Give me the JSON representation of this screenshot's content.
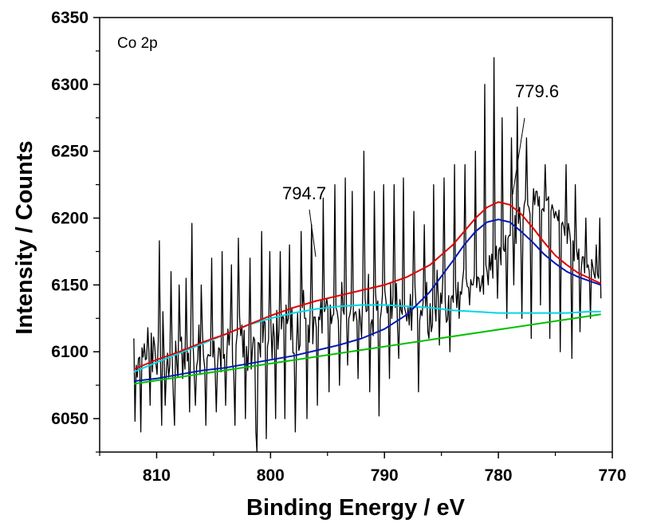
{
  "chart_data": {
    "type": "line",
    "title": "",
    "panel_label": "Co 2p",
    "xlabel": "Binding Energy / eV",
    "ylabel": "Intensity / Counts",
    "xlim": [
      815,
      770
    ],
    "ylim": [
      6025,
      6350
    ],
    "x_reversed": true,
    "grid": false,
    "legend": "none",
    "x_ticks": [
      810,
      800,
      790,
      780,
      770
    ],
    "y_ticks": [
      6050,
      6100,
      6150,
      6200,
      6250,
      6300,
      6350
    ],
    "series": [
      {
        "role": "raw",
        "color": "#000000",
        "x_start": 812,
        "x_end": 771,
        "x_step": 0.1,
        "values": [
          6070,
          6100,
          6090,
          6081,
          6103,
          6096,
          6089,
          6103,
          6096,
          6106,
          6094,
          6095,
          6118,
          6099,
          6098,
          6114,
          6085,
          6111,
          6104,
          6091,
          6083,
          6108,
          6087,
          6090,
          6093,
          6101,
          6096,
          6084,
          6086,
          6099,
          6081,
          6090,
          6074,
          6096,
          6067,
          6085,
          6108,
          6091,
          6081,
          6107,
          6108,
          6111,
          6080,
          6102,
          6087,
          6109,
          6093,
          6099,
          6095,
          6116,
          6082,
          6106,
          6083,
          6129,
          6089,
          6094,
          6120,
          6083,
          6111,
          6117,
          6096,
          6088,
          6102,
          6095,
          6098,
          6097,
          6097,
          6104,
          6096,
          6108,
          6085,
          6108,
          6090,
          6103,
          6102,
          6085,
          6089,
          6095,
          6098,
          6098,
          6098,
          6117,
          6105,
          6118,
          6114,
          6091,
          6085,
          6118,
          6105,
          6114,
          6118,
          6126,
          6112,
          6120,
          6096,
          6116,
          6124,
          6104,
          6086,
          6105,
          6127,
          6087,
          6101,
          6111,
          6109,
          6118,
          6106,
          6107,
          6106,
          6096,
          6121,
          6107,
          6123,
          6122,
          6110,
          6104,
          6109,
          6093,
          6120,
          6095,
          6121,
          6111,
          6110,
          6131,
          6102,
          6116,
          6104,
          6117,
          6127,
          6125,
          6112,
          6135,
          6121,
          6125,
          6112,
          6109,
          6133,
          6099,
          6099,
          6106,
          6103,
          6129,
          6101,
          6105,
          6124,
          6133,
          6146,
          6125,
          6125,
          6098,
          6120,
          6107,
          6138,
          6112,
          6106,
          6126,
          6126,
          6118,
          6132,
          6126,
          6124,
          6138,
          6114,
          6120,
          6130,
          6133,
          6140,
          6133,
          6127,
          6135,
          6121,
          6127,
          6128,
          6137,
          6133,
          6130,
          6123,
          6150,
          6117,
          6152,
          6131,
          6128,
          6117,
          6127,
          6132,
          6125,
          6128,
          6134,
          6127,
          6123,
          6129,
          6130,
          6123,
          6130,
          6132,
          6125,
          6111,
          6144,
          6138,
          6140,
          6130,
          6131,
          6158,
          6144,
          6121,
          6124,
          6112,
          6146,
          6145,
          6131,
          6138,
          6131,
          6124,
          6131,
          6143,
          6128,
          6146,
          6138,
          6129,
          6135,
          6133,
          6151,
          6125,
          6141,
          6147,
          6133,
          6151,
          6117,
          6136,
          6139,
          6131,
          6128,
          6118,
          6133,
          6129,
          6123,
          6133,
          6155,
          6143,
          6116,
          6142,
          6145,
          6149,
          6133,
          6134,
          6131,
          6123,
          6131,
          6127,
          6137,
          6137,
          6134,
          6152,
          6115,
          6129,
          6136,
          6115,
          6120,
          6144,
          6136,
          6123,
          6161,
          6141,
          6132,
          6144,
          6136,
          6156,
          6151,
          6138,
          6122,
          6124,
          6142,
          6144,
          6140,
          6142,
          6137,
          6153,
          6148,
          6133,
          6152,
          6153,
          6145,
          6143,
          6154,
          6162,
          6136,
          6155,
          6149,
          6148,
          6142,
          6154,
          6150,
          6150,
          6157,
          6148,
          6148,
          6156,
          6155,
          6162,
          6150,
          6157,
          6143,
          6164,
          6165,
          6160,
          6167,
          6172,
          6161,
          6173,
          6155,
          6176,
          6169,
          6179,
          6180,
          6176,
          6178,
          6165,
          6188,
          6177,
          6175,
          6187,
          6182,
          6185,
          6187,
          6187,
          6188,
          6198,
          6186,
          6202,
          6181,
          6206,
          6196,
          6208,
          6188,
          6209,
          6199,
          6210,
          6214,
          6209,
          6210,
          6208,
          6203,
          6214,
          6200,
          6222,
          6210,
          6205,
          6220,
          6209,
          6216,
          6212,
          6206,
          6207,
          6205,
          6215,
          6213,
          6214,
          6216,
          6211,
          6205,
          6210,
          6206,
          6201,
          6205,
          6202,
          6198,
          6206,
          6200,
          6195,
          6197,
          6193,
          6187,
          6192,
          6181,
          6196,
          6190,
          6181,
          6176,
          6183,
          6168,
          6187,
          6177,
          6169,
          6177,
          6174,
          6161,
          6171,
          6171,
          6159,
          6166,
          6163,
          6165,
          6160,
          6160,
          6169,
          6164,
          6158,
          6155,
          6151,
          6158,
          6155,
          6153,
          6155
        ],
        "spikes": [
          [
            812,
            6110
          ],
          [
            811.9,
            6048
          ],
          [
            811.6,
            6095
          ],
          [
            811.4,
            6040
          ],
          [
            810.6,
            6060
          ],
          [
            809.8,
            6183
          ],
          [
            809.6,
            6045
          ],
          [
            809.4,
            6130
          ],
          [
            809.2,
            6060
          ],
          [
            808.7,
            6160
          ],
          [
            808.4,
            6045
          ],
          [
            808,
            6150
          ],
          [
            807.4,
            6155
          ],
          [
            807.1,
            6055
          ],
          [
            806.9,
            6196
          ],
          [
            806.6,
            6060
          ],
          [
            806.1,
            6150
          ],
          [
            805.7,
            6045
          ],
          [
            805.2,
            6170
          ],
          [
            804.8,
            6055
          ],
          [
            804.2,
            6175
          ],
          [
            803.9,
            6060
          ],
          [
            803.4,
            6165
          ],
          [
            803.1,
            6045
          ],
          [
            802.8,
            6185
          ],
          [
            802.2,
            6050
          ],
          [
            801.8,
            6170
          ],
          [
            801.3,
            6040
          ],
          [
            801.2,
            6025
          ],
          [
            800.8,
            6190
          ],
          [
            800.4,
            6035
          ],
          [
            800.1,
            6175
          ],
          [
            799.6,
            6050
          ],
          [
            799.2,
            6175
          ],
          [
            798.7,
            6050
          ],
          [
            798.3,
            6180
          ],
          [
            797.8,
            6040
          ],
          [
            797.3,
            6190
          ],
          [
            796.8,
            6050
          ],
          [
            796.4,
            6195
          ],
          [
            795.9,
            6060
          ],
          [
            795.4,
            6215
          ],
          [
            794.9,
            6070
          ],
          [
            794.4,
            6225
          ],
          [
            793.9,
            6075
          ],
          [
            793.4,
            6230
          ],
          [
            793.2,
            6090
          ],
          [
            792.8,
            6220
          ],
          [
            792.3,
            6080
          ],
          [
            791.8,
            6250
          ],
          [
            791.3,
            6070
          ],
          [
            790.9,
            6220
          ],
          [
            790.5,
            6052
          ],
          [
            790.1,
            6225
          ],
          [
            789.6,
            6080
          ],
          [
            789.2,
            6225
          ],
          [
            788.7,
            6095
          ],
          [
            788.3,
            6230
          ],
          [
            787.8,
            6120
          ],
          [
            787.4,
            6205
          ],
          [
            787,
            6070
          ],
          [
            786.5,
            6195
          ],
          [
            786.1,
            6110
          ],
          [
            785.7,
            6225
          ],
          [
            785.2,
            6105
          ],
          [
            784.8,
            6230
          ],
          [
            784.3,
            6100
          ],
          [
            783.9,
            6240
          ],
          [
            783.4,
            6125
          ],
          [
            782.9,
            6240
          ],
          [
            782.5,
            6135
          ],
          [
            782,
            6250
          ],
          [
            781.6,
            6145
          ],
          [
            781.2,
            6300
          ],
          [
            780.9,
            6150
          ],
          [
            780.4,
            6320
          ],
          [
            780.1,
            6140
          ],
          [
            779.7,
            6275
          ],
          [
            779.3,
            6125
          ],
          [
            778.9,
            6260
          ],
          [
            778.6,
            6150
          ],
          [
            778.3,
            6283
          ],
          [
            777.9,
            6125
          ],
          [
            777.5,
            6260
          ],
          [
            777.1,
            6110
          ],
          [
            776.7,
            6220
          ],
          [
            776.3,
            6135
          ],
          [
            775.9,
            6240
          ],
          [
            775.5,
            6110
          ],
          [
            775.1,
            6200
          ],
          [
            774.6,
            6100
          ],
          [
            774.1,
            6240
          ],
          [
            773.6,
            6095
          ],
          [
            773.2,
            6225
          ],
          [
            772.8,
            6115
          ],
          [
            772.3,
            6200
          ],
          [
            771.9,
            6125
          ],
          [
            771.4,
            6180
          ],
          [
            771.1,
            6200
          ],
          [
            771,
            6140
          ]
        ]
      },
      {
        "role": "envelope",
        "color": "#e00000",
        "x": [
          812,
          810,
          808,
          806,
          804,
          802,
          800,
          798,
          796,
          794,
          792,
          790,
          788,
          786,
          784,
          783,
          782,
          781,
          780,
          779,
          778,
          777,
          776,
          775,
          774,
          773,
          772,
          771
        ],
        "values": [
          6087,
          6094,
          6100,
          6107,
          6113,
          6120,
          6127,
          6133,
          6138,
          6142,
          6146,
          6150,
          6156,
          6165,
          6180,
          6190,
          6200,
          6208,
          6212,
          6210,
          6203,
          6193,
          6182,
          6172,
          6165,
          6159,
          6155,
          6151
        ]
      },
      {
        "role": "peak-779.6",
        "color": "#0018b4",
        "x": [
          812,
          810,
          808,
          806,
          804,
          802,
          800,
          798,
          796,
          794,
          792,
          790,
          788,
          786,
          784,
          783,
          782,
          781,
          780,
          779,
          778,
          777,
          776,
          775,
          774,
          773,
          772,
          771
        ],
        "values": [
          6078,
          6080,
          6083,
          6086,
          6088,
          6091,
          6094,
          6097,
          6101,
          6105,
          6110,
          6117,
          6128,
          6145,
          6168,
          6180,
          6190,
          6197,
          6199,
          6197,
          6190,
          6182,
          6173,
          6166,
          6160,
          6156,
          6153,
          6150
        ]
      },
      {
        "role": "peak-794.7",
        "color": "#00d8e8",
        "x": [
          812,
          810,
          808,
          806,
          804,
          802,
          800,
          798,
          796,
          794,
          792,
          790,
          788,
          786,
          784,
          782,
          780,
          778,
          776,
          774,
          772,
          771
        ],
        "values": [
          6085,
          6092,
          6099,
          6106,
          6113,
          6120,
          6125,
          6129,
          6132,
          6134,
          6135,
          6135,
          6134,
          6133,
          6131,
          6130,
          6129,
          6129,
          6129,
          6129,
          6130,
          6130
        ]
      },
      {
        "role": "background",
        "color": "#00c000",
        "x": [
          812,
          771
        ],
        "values": [
          6076,
          6128
        ]
      }
    ],
    "annotations": [
      {
        "text": "794.7",
        "x": 794.7
      },
      {
        "text": "779.6",
        "x": 779.6
      }
    ]
  }
}
